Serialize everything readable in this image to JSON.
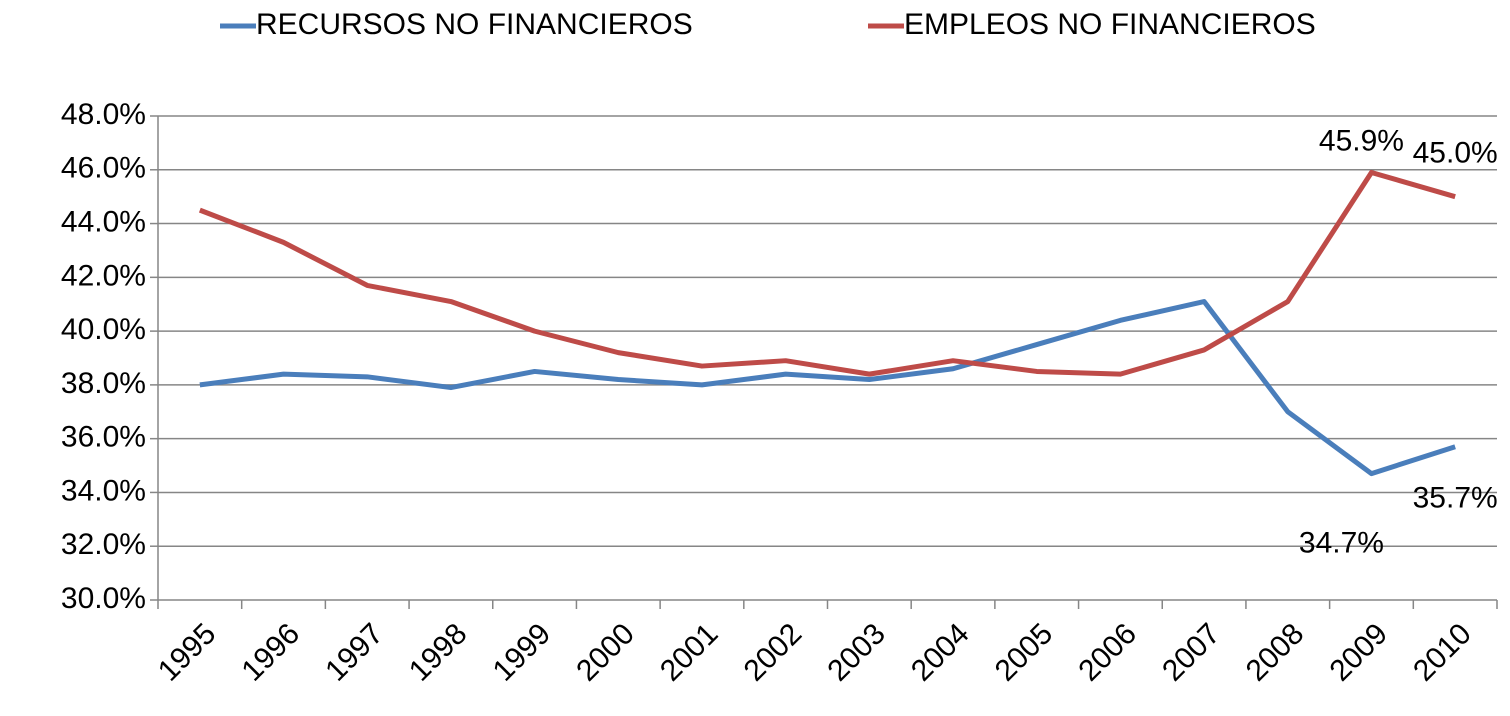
{
  "chart_data": {
    "type": "line",
    "categories": [
      "1995",
      "1996",
      "1997",
      "1998",
      "1999",
      "2000",
      "2001",
      "2002",
      "2003",
      "2004",
      "2005",
      "2006",
      "2007",
      "2008",
      "2009",
      "2010"
    ],
    "series": [
      {
        "name": "RECURSOS NO FINANCIEROS",
        "color": "#4a7ebb",
        "values": [
          38.0,
          38.4,
          38.3,
          37.9,
          38.5,
          38.2,
          38.0,
          38.4,
          38.2,
          38.6,
          39.5,
          40.4,
          41.1,
          37.0,
          34.7,
          35.7
        ],
        "value_labels": [
          null,
          null,
          null,
          null,
          null,
          null,
          null,
          null,
          null,
          null,
          null,
          null,
          null,
          null,
          "34.7%",
          "35.7%"
        ]
      },
      {
        "name": "EMPLEOS NO FINANCIEROS",
        "color": "#be4b48",
        "values": [
          44.5,
          43.3,
          41.7,
          41.1,
          40.0,
          39.2,
          38.7,
          38.9,
          38.4,
          38.9,
          38.5,
          38.4,
          39.3,
          41.1,
          45.9,
          45.0
        ],
        "value_labels": [
          null,
          null,
          null,
          null,
          null,
          null,
          null,
          null,
          null,
          null,
          null,
          null,
          null,
          null,
          "45.9%",
          "45.0%"
        ]
      }
    ],
    "ylim": [
      30,
      48
    ],
    "yticks": [
      {
        "value": 30,
        "label": "30.0%"
      },
      {
        "value": 32,
        "label": "32.0%"
      },
      {
        "value": 34,
        "label": "34.0%"
      },
      {
        "value": 36,
        "label": "36.0%"
      },
      {
        "value": 38,
        "label": "38.0%"
      },
      {
        "value": 40,
        "label": "40.0%"
      },
      {
        "value": 42,
        "label": "42.0%"
      },
      {
        "value": 44,
        "label": "44.0%"
      },
      {
        "value": 46,
        "label": "46.0%"
      },
      {
        "value": 48,
        "label": "48.0%"
      }
    ],
    "grid": true,
    "legend": "top"
  }
}
